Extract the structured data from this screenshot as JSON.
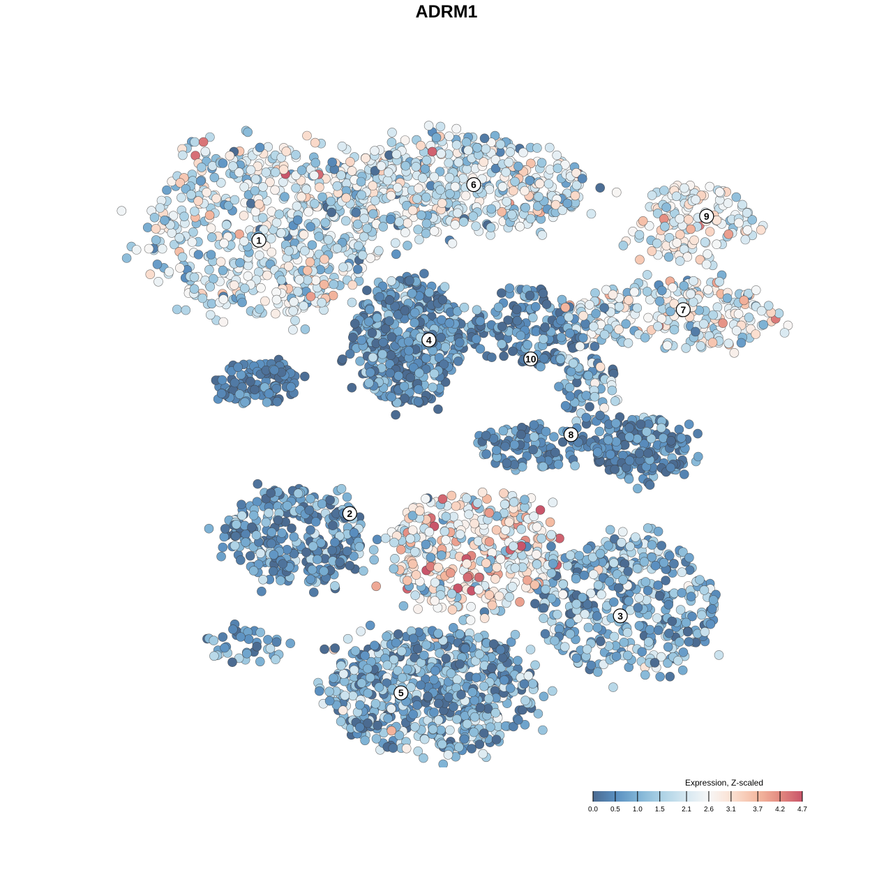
{
  "chart_data": {
    "type": "scatter",
    "title": "ADRM1",
    "xlabel": "",
    "ylabel": "",
    "grid": false,
    "axes_visible": false,
    "xlim": [
      0,
      100
    ],
    "ylim": [
      0,
      100
    ],
    "legend": {
      "title": "Expression, Z-scaled",
      "placement": "bottom-right",
      "ticks": [
        "0.0",
        "0.5",
        "1.0",
        "1.5",
        "2.1",
        "2.6",
        "3.1",
        "3.7",
        "4.2",
        "4.7"
      ],
      "range": [
        0.0,
        4.7
      ],
      "colors": [
        "#4b6b91",
        "#5a8fc0",
        "#7fb3d5",
        "#a9d0e4",
        "#d6e8f1",
        "#f7f7f7",
        "#fbe1d3",
        "#f4b9a0",
        "#e38a80",
        "#c9556a"
      ]
    },
    "clusters": [
      {
        "label": "1",
        "label_pos": [
          18.4,
          82.4
        ],
        "center": [
          19.4,
          84.0
        ],
        "spread": [
          18.3,
          13.3
        ],
        "n": 600,
        "mean_expr": 2.0,
        "sd_expr": 0.8
      },
      {
        "label": "",
        "center": [
          18.3,
          59.7
        ],
        "spread": [
          6.5,
          3.3
        ],
        "n": 110,
        "mean_expr": 0.3,
        "sd_expr": 0.3
      },
      {
        "label": "6",
        "label_pos": [
          51.5,
          91.2
        ],
        "center": [
          49.5,
          91.2
        ],
        "spread": [
          19.4,
          7.7
        ],
        "n": 500,
        "mean_expr": 1.9,
        "sd_expr": 0.8
      },
      {
        "label": "4",
        "label_pos": [
          44.6,
          66.6
        ],
        "center": [
          41.4,
          66.3
        ],
        "spread": [
          8.6,
          9.9
        ],
        "n": 450,
        "mean_expr": 0.6,
        "sd_expr": 0.6
      },
      {
        "label": "9",
        "label_pos": [
          87.4,
          86.2
        ],
        "center": [
          84.9,
          85.1
        ],
        "spread": [
          9.7,
          6.1
        ],
        "n": 150,
        "mean_expr": 2.4,
        "sd_expr": 0.7
      },
      {
        "label": "7",
        "label_pos": [
          83.8,
          71.4
        ],
        "center": [
          82.8,
          70.7
        ],
        "spread": [
          16.1,
          5.5
        ],
        "n": 250,
        "mean_expr": 2.2,
        "sd_expr": 0.9
      },
      {
        "label": "10",
        "label_pos": [
          60.3,
          63.6
        ],
        "center": [
          59.1,
          68.5
        ],
        "spread": [
          8.6,
          6.6
        ],
        "n": 150,
        "mean_expr": 0.5,
        "sd_expr": 0.5
      },
      {
        "label": "8",
        "label_pos": [
          66.5,
          51.6
        ],
        "center": [
          77.4,
          49.7
        ],
        "spread": [
          7.5,
          5.5
        ],
        "n": 180,
        "mean_expr": 0.5,
        "sd_expr": 0.5
      },
      {
        "label": "",
        "center": [
          68.8,
          60.8
        ],
        "spread": [
          4.3,
          7.7
        ],
        "n": 80,
        "mean_expr": 1.0,
        "sd_expr": 0.7
      },
      {
        "label": "",
        "center": [
          60.2,
          49.7
        ],
        "spread": [
          8.6,
          3.3
        ],
        "n": 100,
        "mean_expr": 0.5,
        "sd_expr": 0.5
      },
      {
        "label": "2",
        "label_pos": [
          32.4,
          39.1
        ],
        "center": [
          23.7,
          35.4
        ],
        "spread": [
          10.8,
          7.7
        ],
        "n": 300,
        "mean_expr": 0.6,
        "sd_expr": 0.6
      },
      {
        "label": "",
        "center": [
          16.1,
          18.2
        ],
        "spread": [
          6.5,
          2.8
        ],
        "n": 40,
        "mean_expr": 0.8,
        "sd_expr": 0.6
      },
      {
        "label": "",
        "center": [
          51.6,
          33.1
        ],
        "spread": [
          14.0,
          9.9
        ],
        "n": 400,
        "mean_expr": 2.6,
        "sd_expr": 1.0
      },
      {
        "label": "3",
        "label_pos": [
          74.1,
          22.9
        ],
        "center": [
          75.3,
          24.3
        ],
        "spread": [
          14.0,
          11.0
        ],
        "n": 400,
        "mean_expr": 1.0,
        "sd_expr": 0.8
      },
      {
        "label": "5",
        "label_pos": [
          40.3,
          10.7
        ],
        "center": [
          45.2,
          11.0
        ],
        "spread": [
          16.1,
          9.9
        ],
        "n": 600,
        "mean_expr": 0.9,
        "sd_expr": 0.8
      }
    ]
  }
}
